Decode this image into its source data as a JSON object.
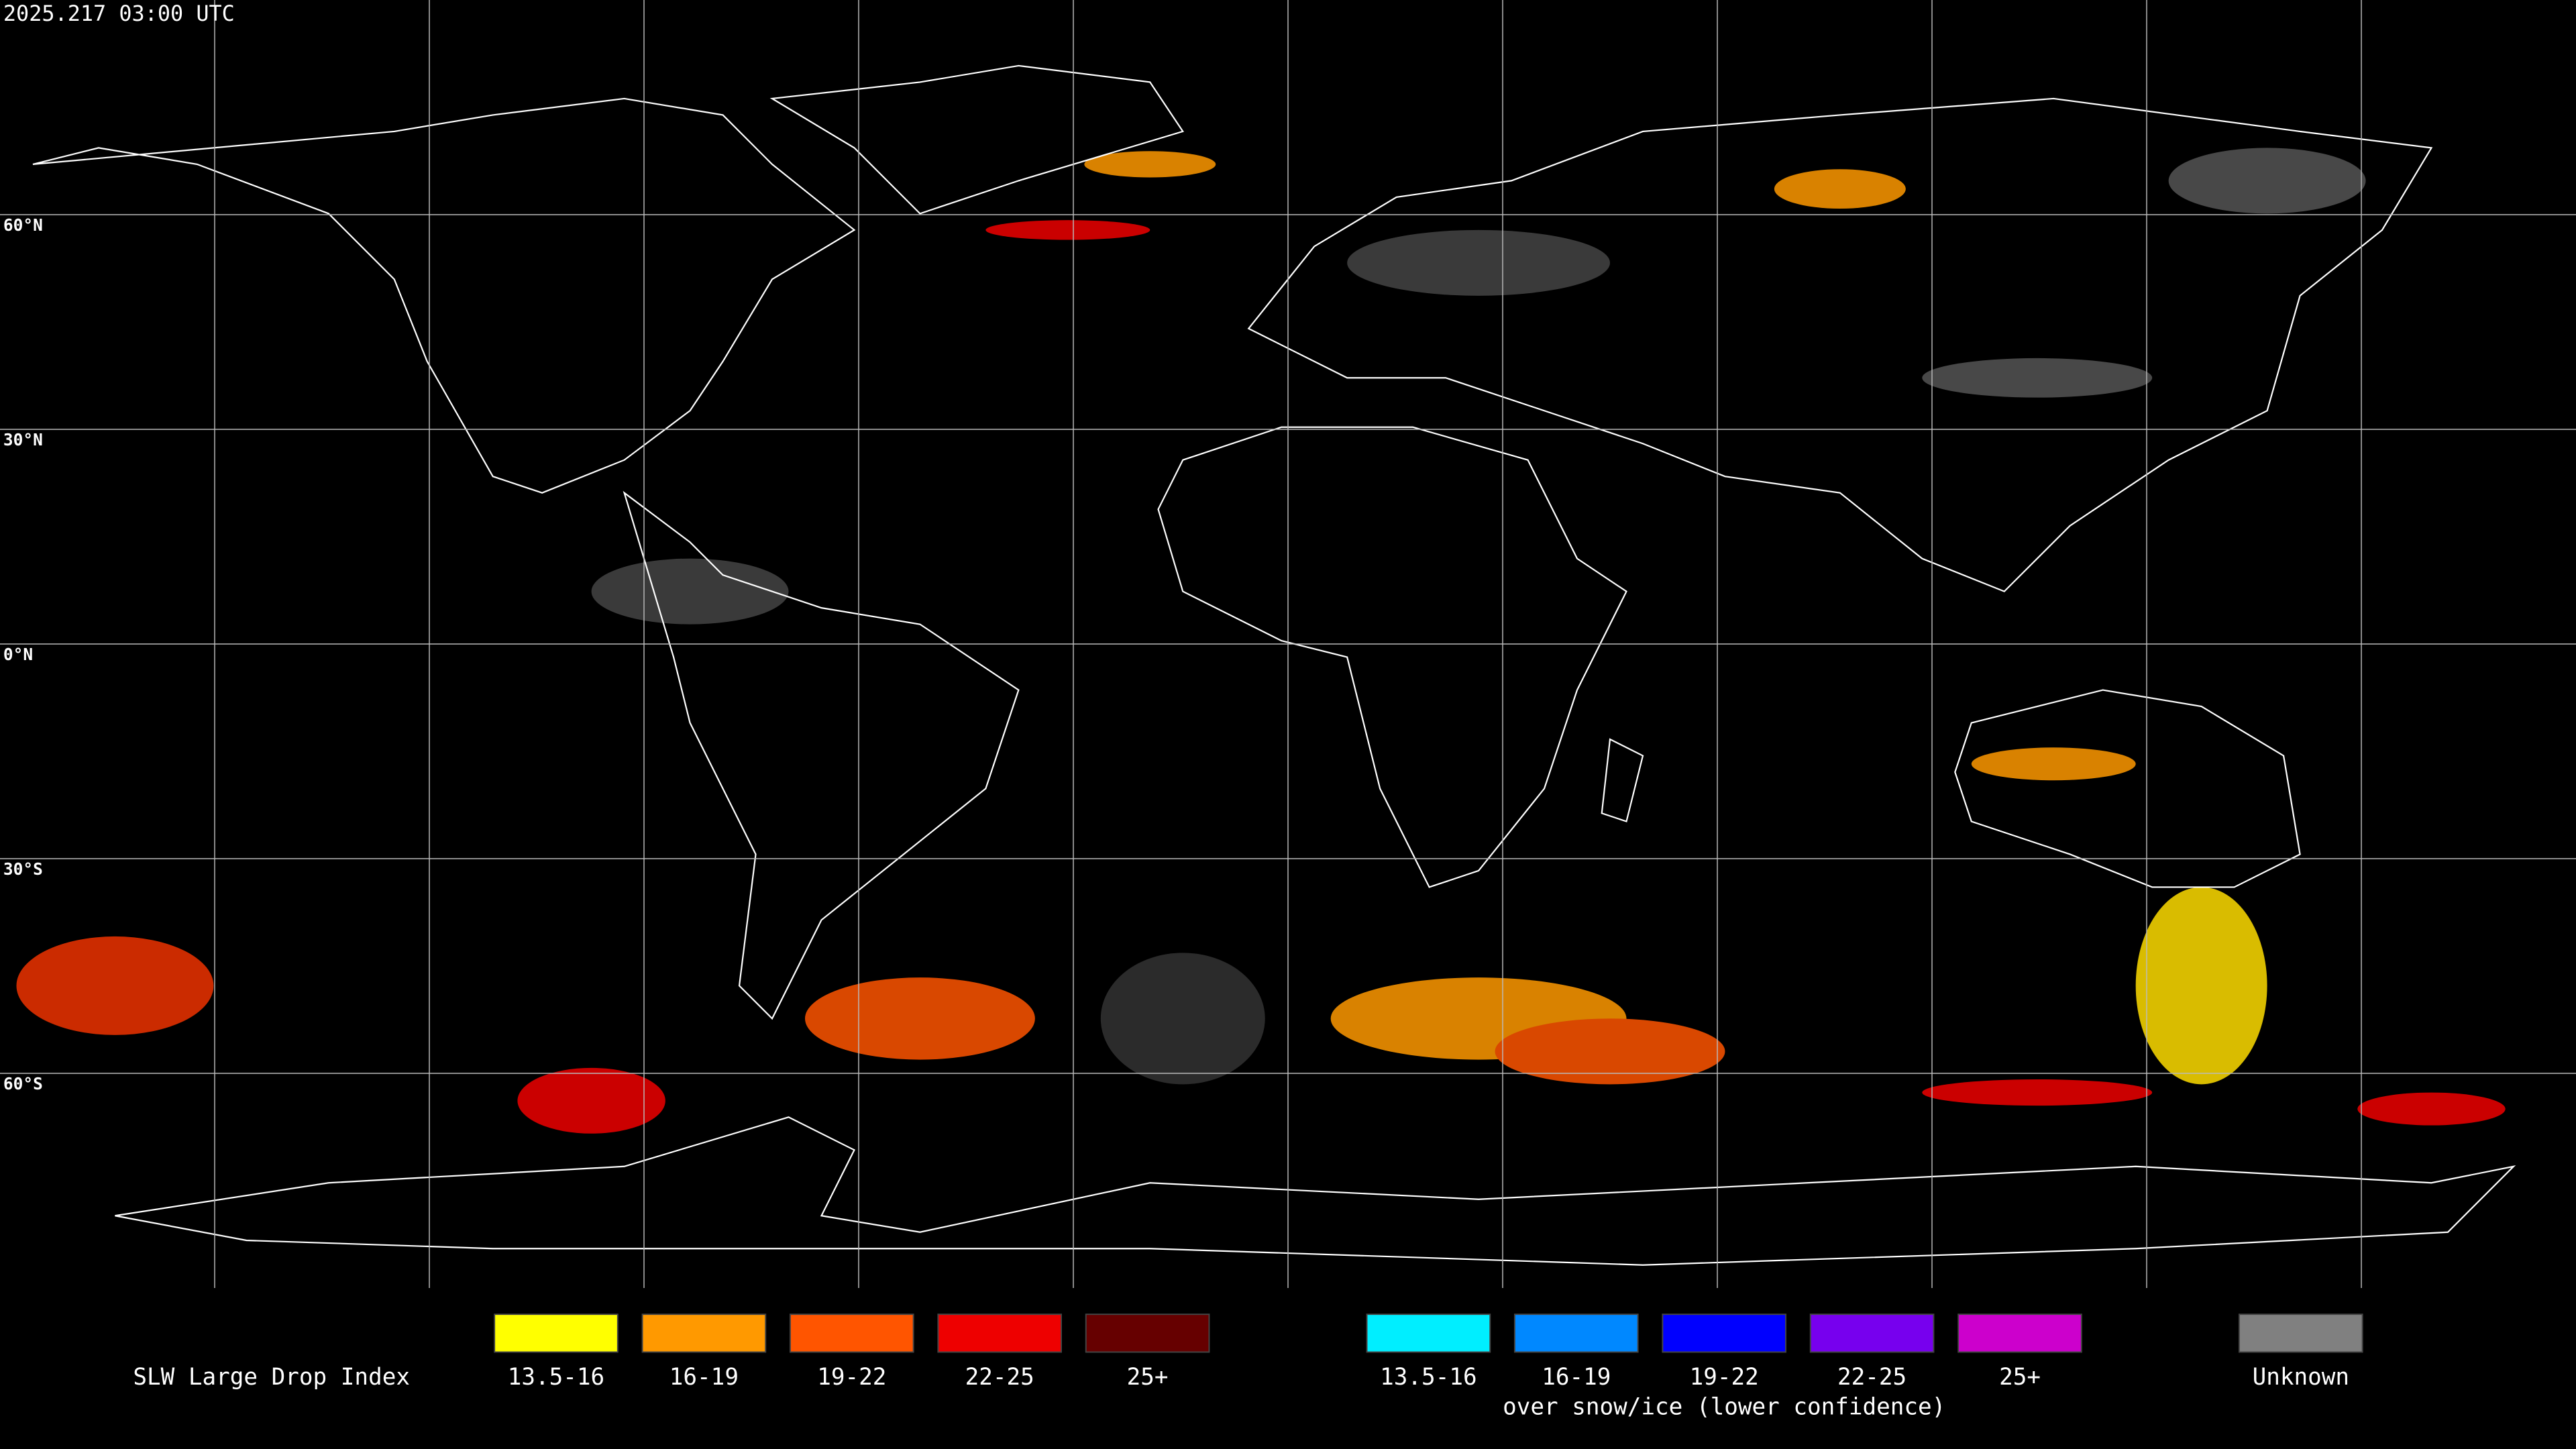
{
  "timestamp": "2025.217 03:00 UTC",
  "latitude_labels": [
    "60°N",
    "30°N",
    "0°N",
    "30°S",
    "60°S"
  ],
  "legend": {
    "title": "SLW Large Drop Index",
    "groups": [
      {
        "items": [
          {
            "label": "13.5-16",
            "color": "#ffff00"
          },
          {
            "label": "16-19",
            "color": "#ff9900"
          },
          {
            "label": "19-22",
            "color": "#ff5500"
          },
          {
            "label": "22-25",
            "color": "#ee0000"
          },
          {
            "label": "25+",
            "color": "#660000"
          }
        ]
      },
      {
        "items": [
          {
            "label": "13.5-16",
            "color": "#00eeff"
          },
          {
            "label": "16-19",
            "color": "#0088ff"
          },
          {
            "label": "19-22",
            "color": "#0000ff"
          },
          {
            "label": "22-25",
            "color": "#7700ee"
          },
          {
            "label": "25+",
            "color": "#cc00cc"
          }
        ],
        "caption": "over snow/ice (lower confidence)"
      },
      {
        "items": [
          {
            "label": "Unknown",
            "color": "#808080"
          }
        ]
      }
    ]
  }
}
